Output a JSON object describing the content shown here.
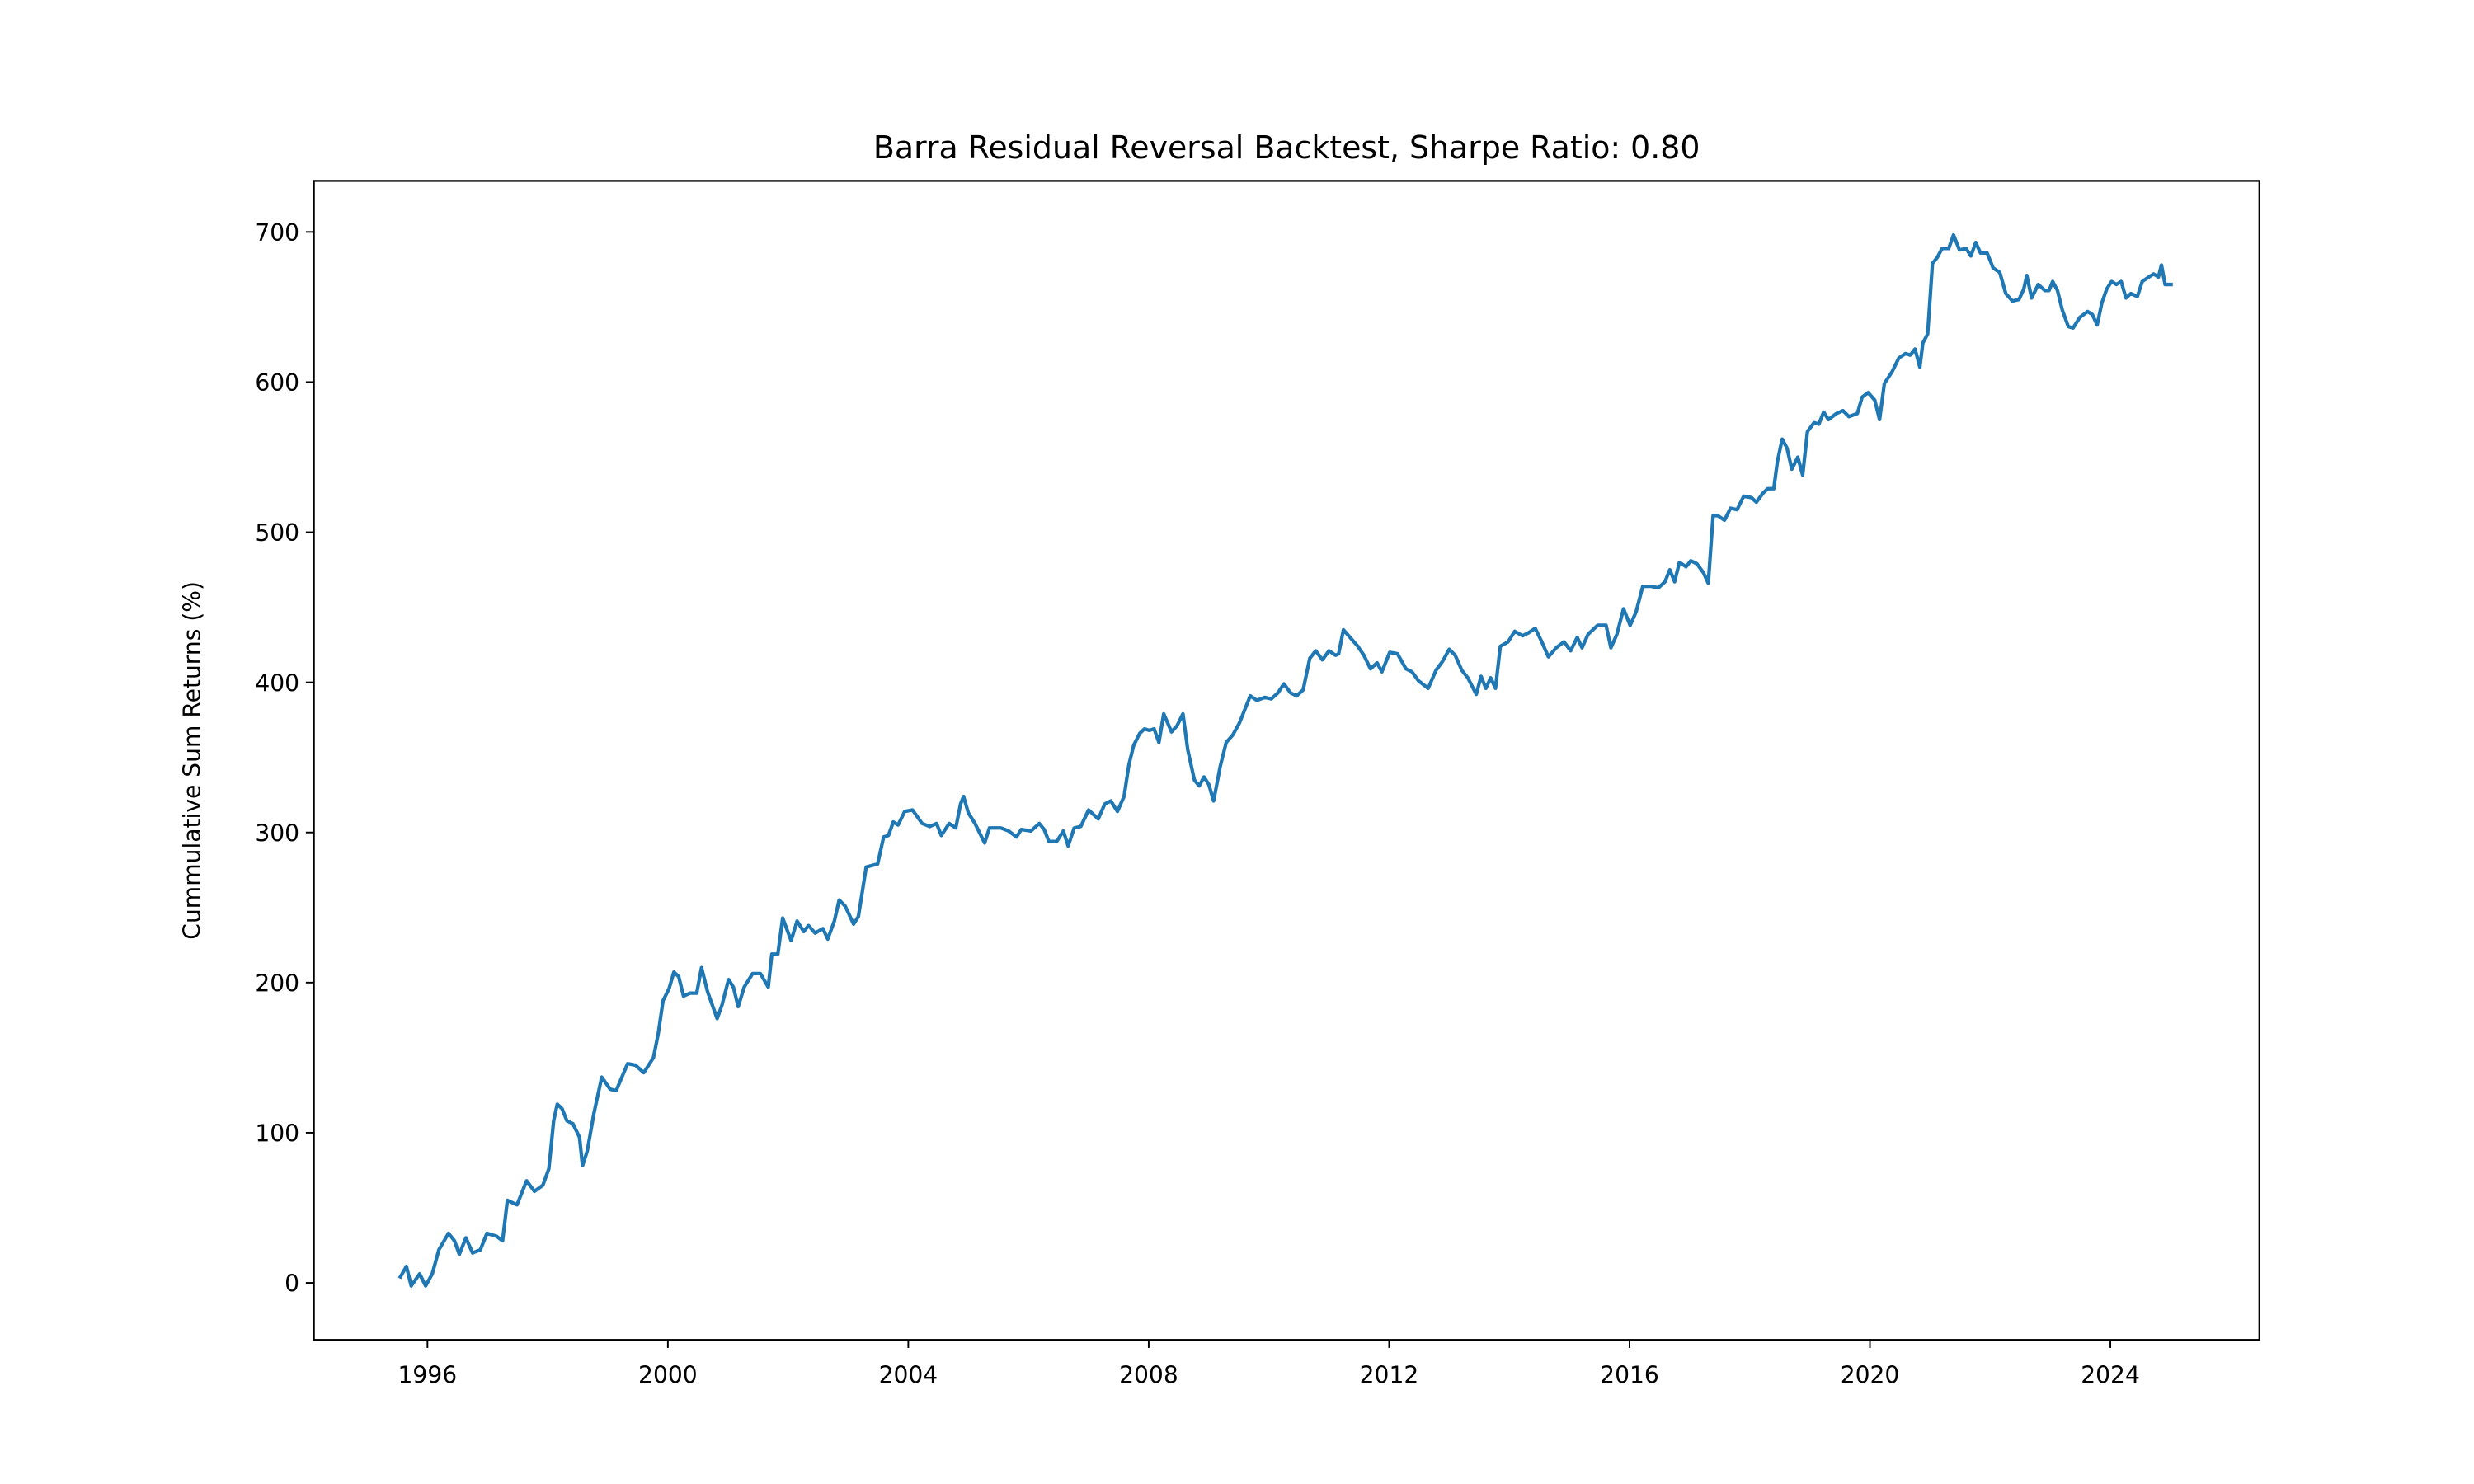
{
  "chart_data": {
    "type": "line",
    "title": "Barra Residual Reversal Backtest, Sharpe Ratio: 0.80",
    "ylabel": "Cummulative Sum Returns (%)",
    "color": "#1f77b4",
    "grid": false,
    "xlim": [
      1994.11,
      2026.48
    ],
    "xticks": [
      1996,
      2000,
      2004,
      2008,
      2012,
      2016,
      2020,
      2024
    ],
    "ylim": [
      -38,
      734
    ],
    "yticks": [
      0,
      100,
      200,
      300,
      400,
      500,
      600,
      700
    ],
    "x": [
      1995.55,
      1995.65,
      1995.73,
      1995.87,
      1995.97,
      1996.08,
      1996.19,
      1996.35,
      1996.45,
      1996.53,
      1996.64,
      1996.75,
      1996.88,
      1996.99,
      1997.15,
      1997.25,
      1997.33,
      1997.49,
      1997.65,
      1997.78,
      1997.92,
      1998.02,
      1998.1,
      1998.16,
      1998.24,
      1998.32,
      1998.42,
      1998.53,
      1998.58,
      1998.66,
      1998.77,
      1998.9,
      1999.04,
      1999.14,
      1999.33,
      1999.46,
      1999.6,
      1999.76,
      1999.84,
      1999.92,
      2000.02,
      2000.1,
      2000.18,
      2000.26,
      2000.37,
      2000.48,
      2000.56,
      2000.66,
      2000.82,
      2000.9,
      2001.01,
      2001.09,
      2001.17,
      2001.27,
      2001.41,
      2001.54,
      2001.67,
      2001.73,
      2001.83,
      2001.91,
      2002.05,
      2002.15,
      2002.26,
      2002.34,
      2002.45,
      2002.58,
      2002.66,
      2002.77,
      2002.85,
      2002.95,
      2003.09,
      2003.17,
      2003.3,
      2003.49,
      2003.59,
      2003.67,
      2003.75,
      2003.83,
      2003.94,
      2004.07,
      2004.23,
      2004.36,
      2004.47,
      2004.55,
      2004.68,
      2004.79,
      2004.87,
      2004.92,
      2005.0,
      2005.11,
      2005.27,
      2005.35,
      2005.54,
      2005.67,
      2005.8,
      2005.88,
      2006.04,
      2006.18,
      2006.26,
      2006.34,
      2006.47,
      2006.58,
      2006.66,
      2006.76,
      2006.87,
      2007.0,
      2007.16,
      2007.27,
      2007.37,
      2007.48,
      2007.59,
      2007.67,
      2007.75,
      2007.85,
      2007.93,
      2008.01,
      2008.09,
      2008.17,
      2008.25,
      2008.38,
      2008.47,
      2008.57,
      2008.65,
      2008.76,
      2008.84,
      2008.92,
      2009.0,
      2009.08,
      2009.19,
      2009.29,
      2009.4,
      2009.51,
      2009.59,
      2009.69,
      2009.8,
      2009.93,
      2010.04,
      2010.15,
      2010.25,
      2010.36,
      2010.46,
      2010.57,
      2010.68,
      2010.78,
      2010.89,
      2011.0,
      2011.11,
      2011.16,
      2011.24,
      2011.37,
      2011.48,
      2011.58,
      2011.69,
      2011.8,
      2011.88,
      2012.01,
      2012.14,
      2012.28,
      2012.38,
      2012.49,
      2012.65,
      2012.78,
      2012.89,
      2013.0,
      2013.1,
      2013.21,
      2013.31,
      2013.45,
      2013.53,
      2013.61,
      2013.69,
      2013.77,
      2013.85,
      2013.98,
      2014.09,
      2014.22,
      2014.32,
      2014.43,
      2014.54,
      2014.65,
      2014.78,
      2014.91,
      2015.02,
      2015.13,
      2015.21,
      2015.31,
      2015.47,
      2015.61,
      2015.69,
      2015.79,
      2015.9,
      2016.01,
      2016.11,
      2016.22,
      2016.35,
      2016.48,
      2016.59,
      2016.67,
      2016.75,
      2016.83,
      2016.94,
      2017.02,
      2017.12,
      2017.23,
      2017.31,
      2017.39,
      2017.47,
      2017.58,
      2017.68,
      2017.79,
      2017.9,
      2018.03,
      2018.11,
      2018.22,
      2018.3,
      2018.4,
      2018.46,
      2018.54,
      2018.62,
      2018.7,
      2018.8,
      2018.88,
      2018.96,
      2019.07,
      2019.15,
      2019.23,
      2019.31,
      2019.44,
      2019.55,
      2019.65,
      2019.79,
      2019.87,
      2019.97,
      2020.08,
      2020.16,
      2020.24,
      2020.37,
      2020.48,
      2020.59,
      2020.67,
      2020.75,
      2020.83,
      2020.88,
      2020.96,
      2021.04,
      2021.12,
      2021.2,
      2021.31,
      2021.39,
      2021.49,
      2021.6,
      2021.68,
      2021.76,
      2021.84,
      2021.95,
      2022.05,
      2022.16,
      2022.26,
      2022.37,
      2022.48,
      2022.56,
      2022.61,
      2022.69,
      2022.8,
      2022.91,
      2022.98,
      2023.04,
      2023.12,
      2023.2,
      2023.3,
      2023.38,
      2023.49,
      2023.62,
      2023.7,
      2023.78,
      2023.86,
      2023.94,
      2024.02,
      2024.1,
      2024.18,
      2024.26,
      2024.34,
      2024.45,
      2024.53,
      2024.64,
      2024.72,
      2024.8,
      2024.85,
      2024.91,
      2025.01
    ],
    "values": [
      4,
      11,
      -2,
      6,
      -2,
      6,
      22,
      33,
      28,
      19,
      30,
      20,
      22,
      33,
      31,
      28,
      55,
      52,
      68,
      61,
      65,
      76,
      108,
      119,
      116,
      108,
      106,
      97,
      78,
      88,
      113,
      137,
      129,
      128,
      146,
      145,
      140,
      150,
      166,
      188,
      196,
      207,
      204,
      191,
      193,
      193,
      210,
      194,
      176,
      185,
      202,
      197,
      184,
      197,
      206,
      206,
      197,
      219,
      219,
      243,
      228,
      241,
      234,
      238,
      233,
      236,
      229,
      241,
      255,
      251,
      239,
      244,
      277,
      279,
      297,
      298,
      307,
      305,
      314,
      315,
      306,
      304,
      306,
      298,
      306,
      303,
      319,
      324,
      313,
      306,
      293,
      303,
      303,
      301,
      297,
      302,
      301,
      306,
      302,
      294,
      294,
      301,
      291,
      303,
      304,
      315,
      309,
      319,
      321,
      314,
      324,
      345,
      358,
      366,
      369,
      368,
      369,
      360,
      379,
      367,
      371,
      379,
      355,
      335,
      331,
      337,
      332,
      321,
      344,
      360,
      365,
      373,
      381,
      391,
      388,
      390,
      389,
      393,
      399,
      393,
      391,
      395,
      416,
      421,
      415,
      421,
      418,
      419,
      435,
      429,
      424,
      418,
      409,
      413,
      407,
      420,
      419,
      409,
      407,
      401,
      396,
      408,
      414,
      422,
      418,
      408,
      403,
      392,
      404,
      396,
      403,
      396,
      424,
      427,
      434,
      431,
      433,
      436,
      427,
      417,
      423,
      427,
      421,
      430,
      423,
      432,
      438,
      438,
      423,
      432,
      449,
      438,
      447,
      464,
      464,
      463,
      467,
      475,
      467,
      480,
      477,
      481,
      479,
      473,
      466,
      511,
      511,
      508,
      516,
      515,
      524,
      523,
      520,
      526,
      529,
      529,
      547,
      562,
      556,
      542,
      550,
      538,
      567,
      573,
      572,
      580,
      575,
      579,
      581,
      577,
      579,
      590,
      593,
      588,
      575,
      599,
      607,
      616,
      619,
      618,
      622,
      610,
      626,
      632,
      679,
      683,
      689,
      689,
      698,
      688,
      689,
      684,
      693,
      686,
      686,
      676,
      673,
      659,
      654,
      655,
      662,
      671,
      656,
      665,
      661,
      661,
      667,
      661,
      648,
      637,
      636,
      643,
      647,
      645,
      638,
      653,
      662,
      667,
      665,
      667,
      656,
      659,
      657,
      667,
      670,
      672,
      670,
      678,
      665,
      665
    ]
  }
}
